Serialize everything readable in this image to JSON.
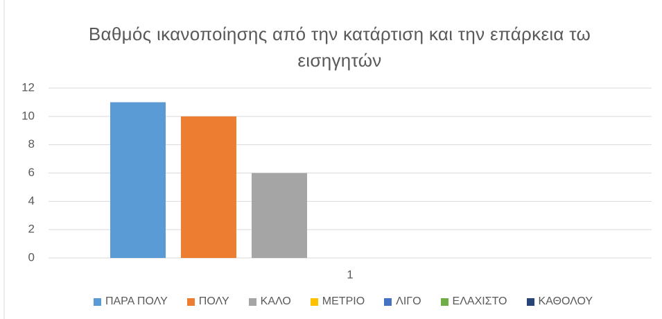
{
  "chart_data": {
    "type": "bar",
    "title": "Βαθμός ικανοποίησης από την κατάρτιση και την επάρκεια τω εισηγητών",
    "categories": [
      "1"
    ],
    "series": [
      {
        "name": "ΠΑΡΑ ΠΟΛΥ",
        "color": "#5b9bd5",
        "values": [
          11
        ]
      },
      {
        "name": "ΠΟΛΥ",
        "color": "#ed7d31",
        "values": [
          10
        ]
      },
      {
        "name": "ΚΑΛΟ",
        "color": "#a5a5a5",
        "values": [
          6
        ]
      },
      {
        "name": "ΜΕΤΡΙΟ",
        "color": "#ffc000",
        "values": [
          0
        ]
      },
      {
        "name": "ΛΙΓΟ",
        "color": "#4472c4",
        "values": [
          0
        ]
      },
      {
        "name": "ΕΛΑΧΙΣΤΟ",
        "color": "#70ad47",
        "values": [
          0
        ]
      },
      {
        "name": "ΚΑΘΟΛΟΥ",
        "color": "#264478",
        "values": [
          0
        ]
      }
    ],
    "ylim": [
      0,
      12
    ],
    "yticks": [
      0,
      2,
      4,
      6,
      8,
      10,
      12
    ],
    "grid": true,
    "legend": "bottom"
  }
}
